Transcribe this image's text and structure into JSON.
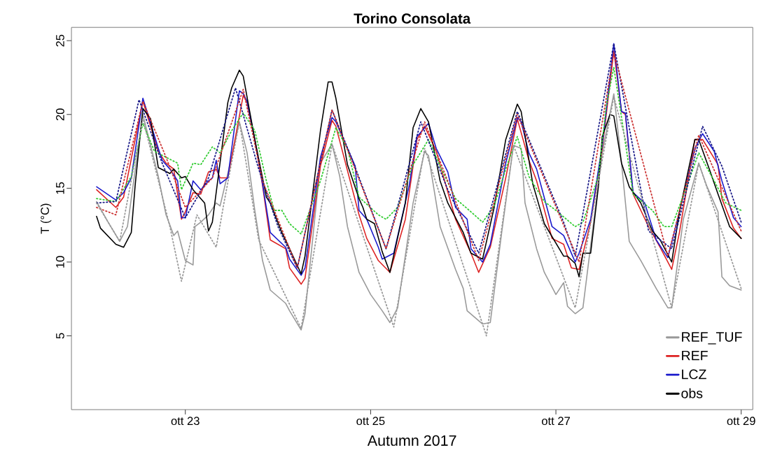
{
  "chart_data": {
    "type": "line",
    "title": "Torino Consolata",
    "xlabel": "Autumn 2017",
    "ylabel": "T (°C)",
    "xlim": [
      "2017-10-21T18:30",
      "2017-10-29T03:00"
    ],
    "ylim": [
      0,
      25.9
    ],
    "xticks": [
      {
        "value": "2017-10-23",
        "label": "ott 23"
      },
      {
        "value": "2017-10-25",
        "label": "ott 25"
      },
      {
        "value": "2017-10-27",
        "label": "ott 27"
      },
      {
        "value": "2017-10-29",
        "label": "ott 29"
      }
    ],
    "yticks": [
      5,
      10,
      15,
      20,
      25
    ],
    "grid": false,
    "legend": "bottom right",
    "series": [
      {
        "name": "REF_TUF",
        "color": "#999999",
        "line_style": "solid",
        "x": [
          "2017-10-22T01:00",
          "2017-10-22T04:00",
          "2017-10-22T07:00",
          "2017-10-22T09:00",
          "2017-10-22T13:00",
          "2017-10-22T17:00",
          "2017-10-22T19:00",
          "2017-10-22T21:00",
          "2017-10-22T22:00",
          "2017-10-23T00:00",
          "2017-10-23T02:00",
          "2017-10-23T02:30",
          "2017-10-23T04:00",
          "2017-10-23T06:00",
          "2017-10-23T08:00",
          "2017-10-23T09:00",
          "2017-10-23T12:00",
          "2017-10-23T14:00",
          "2017-10-23T16:00",
          "2017-10-23T18:00",
          "2017-10-23T20:00",
          "2017-10-23T22:00",
          "2017-10-24T02:00",
          "2017-10-24T03:00",
          "2017-10-24T06:00",
          "2017-10-24T07:00",
          "2017-10-24T11:00",
          "2017-10-24T14:00",
          "2017-10-24T16:00",
          "2017-10-24T18:00",
          "2017-10-24T21:00",
          "2017-10-25T00:00",
          "2017-10-25T03:00",
          "2017-10-25T05:00",
          "2017-10-25T07:00",
          "2017-10-25T11:00",
          "2017-10-25T14:00",
          "2017-10-25T15:00",
          "2017-10-25T18:00",
          "2017-10-25T22:00",
          "2017-10-26T00:00",
          "2017-10-26T01:00",
          "2017-10-26T05:00",
          "2017-10-26T07:00",
          "2017-10-26T10:00",
          "2017-10-26T13:00",
          "2017-10-26T15:00",
          "2017-10-26T16:00",
          "2017-10-26T19:00",
          "2017-10-26T21:00",
          "2017-10-27T00:00",
          "2017-10-27T02:00",
          "2017-10-27T03:00",
          "2017-10-27T05:00",
          "2017-10-27T07:00",
          "2017-10-27T12:00",
          "2017-10-27T15:00",
          "2017-10-27T17:00",
          "2017-10-27T19:00",
          "2017-10-27T22:00",
          "2017-10-28T02:00",
          "2017-10-28T05:00",
          "2017-10-28T06:00",
          "2017-10-28T09:00",
          "2017-10-28T13:00",
          "2017-10-28T15:00",
          "2017-10-28T18:00",
          "2017-10-28T19:00",
          "2017-10-28T21:00",
          "2017-10-29T00:00"
        ],
        "values": [
          14.1,
          12.7,
          11.4,
          12.4,
          20.0,
          15.8,
          13.2,
          11.8,
          12.1,
          10.1,
          9.8,
          12.4,
          12.7,
          13.2,
          14.0,
          13.8,
          17.1,
          19.5,
          17.4,
          13.5,
          10.1,
          8.1,
          7.2,
          6.7,
          5.4,
          6.5,
          16.7,
          18.0,
          15.8,
          12.4,
          9.3,
          7.8,
          6.7,
          5.9,
          6.9,
          14.0,
          17.5,
          17.2,
          12.4,
          9.5,
          8.2,
          6.7,
          5.8,
          5.9,
          12.1,
          17.9,
          17.7,
          14.0,
          10.9,
          9.3,
          7.8,
          8.6,
          7.0,
          6.5,
          6.9,
          17.4,
          21.4,
          16.7,
          11.4,
          10.1,
          8.2,
          6.9,
          6.9,
          12.9,
          16.7,
          15.2,
          13.4,
          9.0,
          8.4,
          8.1
        ]
      },
      {
        "name": "REF",
        "color": "#dd2222",
        "line_style": "solid",
        "x": [
          "2017-10-22T01:00",
          "2017-10-22T06:00",
          "2017-10-22T08:00",
          "2017-10-22T13:00",
          "2017-10-22T17:00",
          "2017-10-22T19:00",
          "2017-10-22T21:00",
          "2017-10-22T23:00",
          "2017-10-23T00:00",
          "2017-10-23T02:00",
          "2017-10-23T04:00",
          "2017-10-23T06:00",
          "2017-10-23T08:00",
          "2017-10-23T09:00",
          "2017-10-23T11:00",
          "2017-10-23T15:00",
          "2017-10-23T16:00",
          "2017-10-23T18:00",
          "2017-10-23T20:00",
          "2017-10-23T22:00",
          "2017-10-24T02:00",
          "2017-10-24T03:00",
          "2017-10-24T06:00",
          "2017-10-24T07:00",
          "2017-10-24T11:00",
          "2017-10-24T14:00",
          "2017-10-24T15:00",
          "2017-10-24T21:00",
          "2017-10-24T23:00",
          "2017-10-25T02:00",
          "2017-10-25T05:00",
          "2017-10-25T09:00",
          "2017-10-25T12:00",
          "2017-10-25T14:00",
          "2017-10-25T17:00",
          "2017-10-25T22:00",
          "2017-10-26T02:00",
          "2017-10-26T04:00",
          "2017-10-26T07:00",
          "2017-10-26T11:00",
          "2017-10-26T14:00",
          "2017-10-26T17:00",
          "2017-10-26T19:00",
          "2017-10-26T23:00",
          "2017-10-27T02:00",
          "2017-10-27T04:00",
          "2017-10-27T06:00",
          "2017-10-27T09:00",
          "2017-10-27T12:00",
          "2017-10-27T15:00",
          "2017-10-27T17:00",
          "2017-10-27T18:00",
          "2017-10-27T20:00",
          "2017-10-28T00:00",
          "2017-10-28T03:00",
          "2017-10-28T06:00",
          "2017-10-28T08:00",
          "2017-10-28T12:00",
          "2017-10-28T14:00",
          "2017-10-28T18:00",
          "2017-10-28T19:00",
          "2017-10-28T22:00",
          "2017-10-29T00:00"
        ],
        "values": [
          14.9,
          13.7,
          14.4,
          20.9,
          17.5,
          16.7,
          16.3,
          12.9,
          13.4,
          14.7,
          14.6,
          16.1,
          16.3,
          15.7,
          15.7,
          21.3,
          20.8,
          18.3,
          15.2,
          11.5,
          10.9,
          9.6,
          8.5,
          8.9,
          16.5,
          19.6,
          19.2,
          13.2,
          11.6,
          10.1,
          9.3,
          12.9,
          18.3,
          19.2,
          17.5,
          12.9,
          10.6,
          9.3,
          11.0,
          15.7,
          19.7,
          16.9,
          15.5,
          11.6,
          11.2,
          9.6,
          9.5,
          12.7,
          17.7,
          24.3,
          20.2,
          20.0,
          14.6,
          12.4,
          11.0,
          9.5,
          12.0,
          18.3,
          18.3,
          16.6,
          14.3,
          12.3,
          11.6
        ]
      },
      {
        "name": "LCZ",
        "color": "#1a1acc",
        "line_style": "solid",
        "x": [
          "2017-10-22T01:00",
          "2017-10-22T06:00",
          "2017-10-22T08:00",
          "2017-10-22T10:00",
          "2017-10-22T13:00",
          "2017-10-22T17:00",
          "2017-10-22T18:00",
          "2017-10-22T20:00",
          "2017-10-22T22:00",
          "2017-10-22T23:00",
          "2017-10-23T00:00",
          "2017-10-23T02:00",
          "2017-10-23T04:00",
          "2017-10-23T06:00",
          "2017-10-23T07:00",
          "2017-10-23T08:00",
          "2017-10-23T09:00",
          "2017-10-23T11:00",
          "2017-10-23T14:00",
          "2017-10-23T15:00",
          "2017-10-23T16:00",
          "2017-10-23T18:00",
          "2017-10-23T20:00",
          "2017-10-23T22:00",
          "2017-10-24T02:00",
          "2017-10-24T03:00",
          "2017-10-24T06:00",
          "2017-10-24T07:00",
          "2017-10-24T11:00",
          "2017-10-24T14:00",
          "2017-10-24T15:00",
          "2017-10-24T20:00",
          "2017-10-24T21:00",
          "2017-10-24T23:00",
          "2017-10-25T02:00",
          "2017-10-25T03:00",
          "2017-10-25T06:00",
          "2017-10-25T10:00",
          "2017-10-25T12:00",
          "2017-10-25T15:00",
          "2017-10-25T17:00",
          "2017-10-25T20:00",
          "2017-10-25T22:00",
          "2017-10-26T01:00",
          "2017-10-26T02:00",
          "2017-10-26T05:00",
          "2017-10-26T07:00",
          "2017-10-26T11:00",
          "2017-10-26T14:00",
          "2017-10-26T15:00",
          "2017-10-26T17:00",
          "2017-10-26T19:00",
          "2017-10-26T23:00",
          "2017-10-27T02:00",
          "2017-10-27T05:00",
          "2017-10-27T06:00",
          "2017-10-27T09:00",
          "2017-10-27T12:00",
          "2017-10-27T15:00",
          "2017-10-27T17:00",
          "2017-10-27T18:00",
          "2017-10-27T20:00",
          "2017-10-27T23:00",
          "2017-10-28T02:00",
          "2017-10-28T05:00",
          "2017-10-28T08:00",
          "2017-10-28T12:00",
          "2017-10-28T14:00",
          "2017-10-28T17:00",
          "2017-10-28T19:00",
          "2017-10-28T22:00",
          "2017-10-29T00:00"
        ],
        "values": [
          15.1,
          14.2,
          14.7,
          15.7,
          21.1,
          17.7,
          16.9,
          16.3,
          15.5,
          13.0,
          13.0,
          15.5,
          14.9,
          15.5,
          15.7,
          16.9,
          15.3,
          15.7,
          21.6,
          21.4,
          20.9,
          18.3,
          15.3,
          12.0,
          11.0,
          10.2,
          9.1,
          9.6,
          17.1,
          19.8,
          19.5,
          16.5,
          13.5,
          12.9,
          11.0,
          10.2,
          10.6,
          15.2,
          18.5,
          19.4,
          17.7,
          16.1,
          13.7,
          12.9,
          10.9,
          10.0,
          11.2,
          16.7,
          19.8,
          19.5,
          17.4,
          16.3,
          12.4,
          11.8,
          10.0,
          10.6,
          12.9,
          17.9,
          24.8,
          20.2,
          20.1,
          14.7,
          14.0,
          11.5,
          10.3,
          13.4,
          17.7,
          18.7,
          17.5,
          15.5,
          13.0,
          12.4
        ]
      },
      {
        "name": "obs",
        "color": "#000000",
        "line_style": "solid",
        "x": [
          "2017-10-22T01:00",
          "2017-10-22T02:00",
          "2017-10-22T06:00",
          "2017-10-22T08:00",
          "2017-10-22T10:00",
          "2017-10-22T11:00",
          "2017-10-22T13:00",
          "2017-10-22T15:00",
          "2017-10-22T17:00",
          "2017-10-22T20:00",
          "2017-10-22T21:00",
          "2017-10-22T23:00",
          "2017-10-23T00:00",
          "2017-10-23T02:00",
          "2017-10-23T05:00",
          "2017-10-23T06:00",
          "2017-10-23T07:00",
          "2017-10-23T11:00",
          "2017-10-23T12:00",
          "2017-10-23T14:00",
          "2017-10-23T15:00",
          "2017-10-23T18:00",
          "2017-10-23T21:00",
          "2017-10-23T22:00",
          "2017-10-24T01:00",
          "2017-10-24T03:00",
          "2017-10-24T06:00",
          "2017-10-24T07:00",
          "2017-10-24T11:00",
          "2017-10-24T13:00",
          "2017-10-24T14:00",
          "2017-10-24T15:00",
          "2017-10-24T18:00",
          "2017-10-24T21:00",
          "2017-10-24T22:00",
          "2017-10-24T23:00",
          "2017-10-25T01:00",
          "2017-10-25T03:00",
          "2017-10-25T05:00",
          "2017-10-25T09:00",
          "2017-10-25T11:00",
          "2017-10-25T13:00",
          "2017-10-25T15:00",
          "2017-10-25T18:00",
          "2017-10-25T20:00",
          "2017-10-26T00:00",
          "2017-10-26T02:00",
          "2017-10-26T05:00",
          "2017-10-26T08:00",
          "2017-10-26T11:00",
          "2017-10-26T14:00",
          "2017-10-26T15:00",
          "2017-10-26T18:00",
          "2017-10-26T21:00",
          "2017-10-27T02:00",
          "2017-10-27T03:00",
          "2017-10-27T05:00",
          "2017-10-27T06:00",
          "2017-10-27T07:00",
          "2017-10-27T09:00",
          "2017-10-27T11:00",
          "2017-10-27T12:00",
          "2017-10-27T14:00",
          "2017-10-27T15:00",
          "2017-10-27T17:00",
          "2017-10-27T19:00",
          "2017-10-27T22:00",
          "2017-10-28T01:00",
          "2017-10-28T03:00",
          "2017-10-28T06:00",
          "2017-10-28T08:00",
          "2017-10-28T12:00",
          "2017-10-28T13:00",
          "2017-10-28T16:00",
          "2017-10-28T18:00",
          "2017-10-28T21:00",
          "2017-10-29T00:00"
        ],
        "values": [
          13.1,
          12.3,
          11.2,
          11.0,
          12.0,
          15.2,
          20.4,
          19.7,
          16.4,
          16.0,
          16.3,
          15.7,
          15.8,
          14.9,
          14.0,
          12.1,
          12.7,
          20.8,
          21.8,
          23.0,
          22.6,
          18.3,
          14.4,
          14.0,
          12.0,
          10.9,
          9.2,
          10.4,
          18.9,
          22.2,
          22.2,
          21.1,
          16.6,
          14.3,
          13.7,
          12.9,
          12.6,
          10.7,
          9.3,
          14.0,
          19.1,
          20.4,
          19.5,
          15.5,
          14.0,
          12.0,
          10.6,
          10.2,
          13.7,
          18.3,
          20.7,
          20.2,
          15.3,
          12.6,
          10.4,
          10.4,
          9.9,
          9.0,
          10.6,
          10.6,
          15.1,
          18.5,
          20.0,
          19.9,
          16.7,
          15.1,
          14.0,
          12.1,
          11.5,
          10.0,
          13.4,
          18.3,
          18.3,
          16.1,
          14.6,
          12.4,
          11.6
        ]
      },
      {
        "color": "#33cc33",
        "line_style": "dotted",
        "x": [
          "2017-10-22T01:00",
          "2017-10-22T06:00",
          "2017-10-22T10:00",
          "2017-10-22T13:00",
          "2017-10-22T16:00",
          "2017-10-22T19:00",
          "2017-10-22T22:00",
          "2017-10-22T23:00",
          "2017-10-23T02:00",
          "2017-10-23T04:00",
          "2017-10-23T07:00",
          "2017-10-23T09:00",
          "2017-10-23T12:00",
          "2017-10-23T15:00",
          "2017-10-23T18:00",
          "2017-10-23T21:00",
          "2017-10-23T23:00",
          "2017-10-24T01:00",
          "2017-10-24T03:00",
          "2017-10-24T06:00",
          "2017-10-24T11:00",
          "2017-10-24T15:00",
          "2017-10-24T18:00",
          "2017-10-24T21:00",
          "2017-10-25T02:00",
          "2017-10-25T04:00",
          "2017-10-25T07:00",
          "2017-10-25T11:00",
          "2017-10-25T15:00",
          "2017-10-25T18:00",
          "2017-10-25T22:00",
          "2017-10-26T02:00",
          "2017-10-26T05:00",
          "2017-10-26T08:00",
          "2017-10-26T11:00",
          "2017-10-26T14:00",
          "2017-10-26T17:00",
          "2017-10-26T21:00",
          "2017-10-27T00:00",
          "2017-10-27T05:00",
          "2017-10-27T07:00",
          "2017-10-27T11:00",
          "2017-10-27T13:00",
          "2017-10-27T15:00",
          "2017-10-27T17:00",
          "2017-10-27T20:00",
          "2017-10-28T01:00",
          "2017-10-28T04:00",
          "2017-10-28T06:00",
          "2017-10-28T10:00",
          "2017-10-28T13:00",
          "2017-10-28T17:00",
          "2017-10-28T20:00",
          "2017-10-29T00:00"
        ],
        "values": [
          14.3,
          14.1,
          15.8,
          19.4,
          17.5,
          17.1,
          16.7,
          14.9,
          16.7,
          16.6,
          17.8,
          17.4,
          18.9,
          20.1,
          18.9,
          15.5,
          13.5,
          13.5,
          12.6,
          11.9,
          15.5,
          19.1,
          17.7,
          14.4,
          13.2,
          12.9,
          13.7,
          16.6,
          18.3,
          16.5,
          14.3,
          13.4,
          12.7,
          13.8,
          16.3,
          18.5,
          15.8,
          14.1,
          13.5,
          12.4,
          12.7,
          15.8,
          20.5,
          23.2,
          19.8,
          14.6,
          13.5,
          12.4,
          12.4,
          15.2,
          17.4,
          15.5,
          14.0,
          13.5
        ]
      },
      {
        "color": "#1a1a88",
        "line_style": "dotted",
        "x": [
          "2017-10-22T01:00",
          "2017-10-22T06:00",
          "2017-10-22T12:00",
          "2017-10-22T18:00",
          "2017-10-23T00:00",
          "2017-10-23T06:00",
          "2017-10-23T13:00",
          "2017-10-23T19:00",
          "2017-10-24T00:00",
          "2017-10-24T05:00",
          "2017-10-24T14:00",
          "2017-10-24T19:00",
          "2017-10-25T04:00",
          "2017-10-25T13:00",
          "2017-10-25T20:00",
          "2017-10-26T04:00",
          "2017-10-26T14:00",
          "2017-10-26T18:00",
          "2017-10-27T02:00",
          "2017-10-27T05:00",
          "2017-10-27T15:00",
          "2017-10-27T18:00",
          "2017-10-28T00:00",
          "2017-10-28T06:00",
          "2017-10-28T14:00",
          "2017-10-28T19:00",
          "2017-10-29T00:00"
        ],
        "values": [
          14.0,
          14.1,
          21.0,
          16.7,
          13.0,
          15.7,
          21.8,
          16.3,
          12.4,
          9.6,
          20.3,
          17.1,
          10.9,
          19.5,
          14.9,
          10.6,
          20.2,
          17.7,
          12.7,
          10.4,
          24.8,
          20.5,
          12.1,
          10.9,
          19.2,
          16.5,
          12.7
        ]
      },
      {
        "color": "#cc3333",
        "line_style": "dotted",
        "x": [
          "2017-10-22T01:00",
          "2017-10-22T06:00",
          "2017-10-22T13:00",
          "2017-10-22T19:00",
          "2017-10-23T00:00",
          "2017-10-23T07:00",
          "2017-10-23T15:00",
          "2017-10-23T20:00",
          "2017-10-24T05:00",
          "2017-10-24T14:00",
          "2017-10-25T04:00",
          "2017-10-25T14:00",
          "2017-10-26T04:00",
          "2017-10-26T14:00",
          "2017-10-27T06:00",
          "2017-10-27T15:00",
          "2017-10-28T05:00",
          "2017-10-28T13:00",
          "2017-10-29T00:00"
        ],
        "values": [
          13.7,
          13.2,
          20.9,
          17.1,
          13.7,
          15.7,
          21.7,
          15.5,
          9.6,
          20.3,
          10.9,
          19.5,
          10.1,
          20.0,
          10.0,
          24.2,
          10.4,
          18.6,
          12.1
        ]
      },
      {
        "color": "#999999",
        "line_style": "dotted",
        "x": [
          "2017-10-22T01:00",
          "2017-10-22T07:00",
          "2017-10-22T13:00",
          "2017-10-22T20:00",
          "2017-10-22T23:00",
          "2017-10-23T03:00",
          "2017-10-23T08:00",
          "2017-10-23T10:00",
          "2017-10-23T14:00",
          "2017-10-23T19:00",
          "2017-10-24T06:00",
          "2017-10-24T14:00",
          "2017-10-25T06:00",
          "2017-10-25T14:00",
          "2017-10-26T06:00",
          "2017-10-26T13:00",
          "2017-10-27T05:00",
          "2017-10-27T15:00",
          "2017-10-28T06:00",
          "2017-10-28T13:00",
          "2017-10-29T00:00"
        ],
        "values": [
          14.0,
          11.4,
          19.7,
          12.4,
          8.7,
          13.2,
          11.0,
          14.0,
          19.5,
          11.5,
          5.5,
          18.0,
          5.6,
          17.7,
          5.0,
          17.9,
          6.9,
          21.2,
          6.9,
          16.7,
          8.2
        ]
      }
    ]
  }
}
